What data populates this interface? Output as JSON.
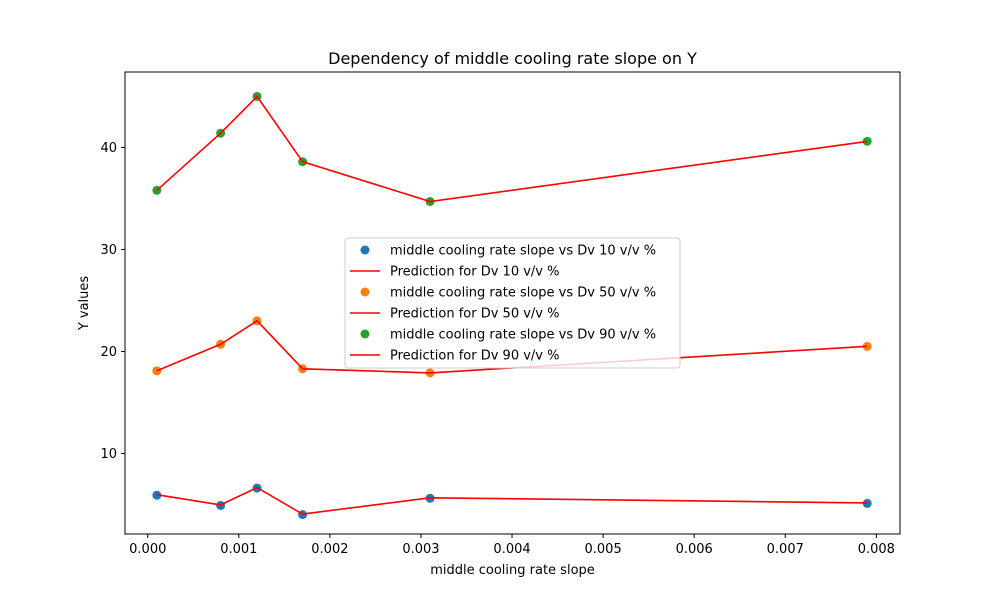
{
  "chart_data": {
    "type": "scatter",
    "title": "Dependency of middle cooling rate slope on Y",
    "xlabel": "middle cooling rate slope",
    "ylabel": "Y values",
    "xlim": [
      -0.00025,
      0.00826
    ],
    "ylim": [
      2.1,
      47.4
    ],
    "xticks": [
      0.0,
      0.001,
      0.002,
      0.003,
      0.004,
      0.005,
      0.006,
      0.007,
      0.008
    ],
    "xtick_labels": [
      "0.000",
      "0.001",
      "0.002",
      "0.003",
      "0.004",
      "0.005",
      "0.006",
      "0.007",
      "0.008"
    ],
    "yticks": [
      10,
      20,
      30,
      40
    ],
    "ytick_labels": [
      "10",
      "20",
      "30",
      "40"
    ],
    "grid": false,
    "legend_position": "center",
    "x": [
      0.0001,
      0.0008,
      0.0012,
      0.0017,
      0.0031,
      0.0079
    ],
    "series": [
      {
        "name": "middle cooling rate slope vs Dv 10 v/v %",
        "kind": "scatter",
        "color": "#1f77b4",
        "values": [
          5.9,
          4.9,
          6.6,
          4.0,
          5.6,
          5.1
        ]
      },
      {
        "name": "Prediction for Dv 10 v/v %",
        "kind": "line",
        "color": "#ff0000",
        "values": [
          5.95,
          4.95,
          6.65,
          4.05,
          5.65,
          5.15
        ]
      },
      {
        "name": "middle cooling rate slope vs Dv 50 v/v %",
        "kind": "scatter",
        "color": "#ff7f0e",
        "values": [
          18.1,
          20.7,
          23.0,
          18.3,
          17.9,
          20.5
        ]
      },
      {
        "name": "Prediction for Dv 50 v/v %",
        "kind": "line",
        "color": "#ff0000",
        "values": [
          18.1,
          20.7,
          23.0,
          18.3,
          17.9,
          20.5
        ]
      },
      {
        "name": "middle cooling rate slope vs Dv 90 v/v %",
        "kind": "scatter",
        "color": "#2ca02c",
        "values": [
          35.8,
          41.4,
          45.0,
          38.6,
          34.7,
          40.6
        ]
      },
      {
        "name": "Prediction for Dv 90 v/v %",
        "kind": "line",
        "color": "#ff0000",
        "values": [
          35.8,
          41.4,
          45.0,
          38.6,
          34.7,
          40.6
        ]
      }
    ]
  }
}
